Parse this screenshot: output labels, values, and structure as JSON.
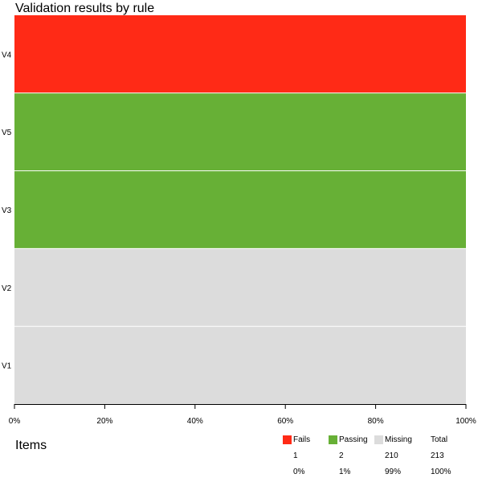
{
  "title": "Validation results by rule",
  "items_label": "Items",
  "colors": {
    "fails": "#ff2a16",
    "passing": "#67b036",
    "missing": "#dcdcdc"
  },
  "chart_data": {
    "type": "bar",
    "orientation": "horizontal",
    "stacked": true,
    "title": "Validation results by rule",
    "xlabel": "",
    "ylabel": "",
    "xlim": [
      0,
      100
    ],
    "x_ticks": [
      "0%",
      "20%",
      "40%",
      "60%",
      "80%",
      "100%"
    ],
    "categories": [
      "V4",
      "V5",
      "V3",
      "V2",
      "V1"
    ],
    "series": [
      {
        "name": "Fails",
        "color": "#ff2a16",
        "values": [
          100,
          0,
          0,
          0,
          0
        ]
      },
      {
        "name": "Passing",
        "color": "#67b036",
        "values": [
          0,
          100,
          100,
          0,
          0
        ]
      },
      {
        "name": "Missing",
        "color": "#dcdcdc",
        "values": [
          0,
          0,
          0,
          100,
          100
        ]
      }
    ],
    "grid": false,
    "legend_position": "bottom-right"
  },
  "legend": {
    "entries": [
      {
        "label": "Fails",
        "count": "1",
        "percent": "0%",
        "color": "#ff2a16"
      },
      {
        "label": "Passing",
        "count": "2",
        "percent": "1%",
        "color": "#67b036"
      },
      {
        "label": "Missing",
        "count": "210",
        "percent": "99%",
        "color": "#dcdcdc"
      }
    ],
    "total": {
      "label": "Total",
      "count": "213",
      "percent": "100%"
    }
  }
}
